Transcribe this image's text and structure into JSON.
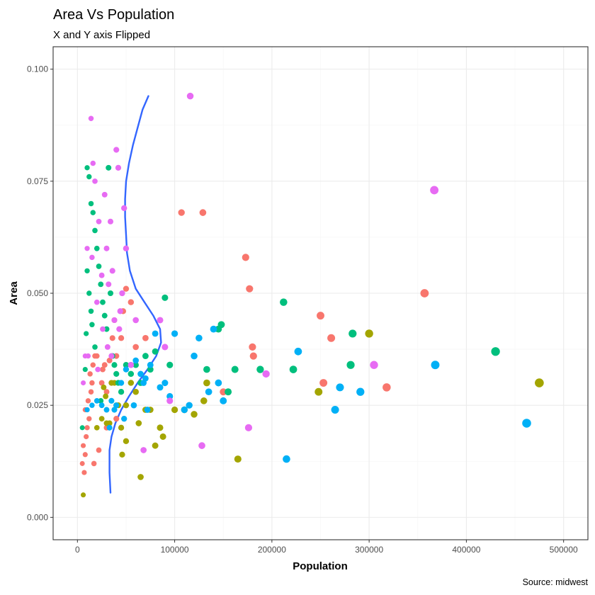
{
  "chart_data": {
    "type": "scatter",
    "title": "Area Vs Population",
    "subtitle": "X and Y axis Flipped",
    "xlabel": "Population",
    "ylabel": "Area",
    "caption": "Source: midwest",
    "xlim": [
      -25000,
      525000
    ],
    "ylim": [
      -0.005,
      0.105
    ],
    "x_ticks": [
      0,
      100000,
      200000,
      300000,
      400000,
      500000
    ],
    "x_tick_labels": [
      "0",
      "100000",
      "200000",
      "300000",
      "400000",
      "500000"
    ],
    "y_ticks": [
      0.0,
      0.025,
      0.05,
      0.075,
      0.1
    ],
    "y_tick_labels": [
      "0.000",
      "0.025",
      "0.050",
      "0.075",
      "0.100"
    ],
    "grid": true,
    "legend": "none",
    "colors": {
      "red": "#F8766D",
      "olive": "#A3A500",
      "green": "#00BF7D",
      "blue": "#00B0F6",
      "pink": "#E76BF3",
      "smooth": "#3366FF",
      "panel_border": "#333333",
      "grid_major": "#EBEBEB",
      "grid_minor": "#F5F5F5"
    },
    "series": [
      {
        "color_key": "red",
        "points": [
          [
            5000,
            0.012
          ],
          [
            7000,
            0.01
          ],
          [
            8000,
            0.014
          ],
          [
            6000,
            0.016
          ],
          [
            9000,
            0.018
          ],
          [
            10000,
            0.02
          ],
          [
            12000,
            0.022
          ],
          [
            8000,
            0.024
          ],
          [
            11000,
            0.026
          ],
          [
            14000,
            0.028
          ],
          [
            13000,
            0.032
          ],
          [
            16000,
            0.034
          ],
          [
            18000,
            0.036
          ],
          [
            15000,
            0.03
          ],
          [
            20000,
            0.036
          ],
          [
            25000,
            0.03
          ],
          [
            30000,
            0.028
          ],
          [
            28000,
            0.034
          ],
          [
            35000,
            0.03
          ],
          [
            40000,
            0.036
          ],
          [
            45000,
            0.04
          ],
          [
            50000,
            0.051
          ],
          [
            60000,
            0.038
          ],
          [
            70000,
            0.04
          ],
          [
            107000,
            0.068
          ],
          [
            129000,
            0.068
          ],
          [
            173000,
            0.058
          ],
          [
            177000,
            0.051
          ],
          [
            180000,
            0.038
          ],
          [
            181000,
            0.036
          ],
          [
            150000,
            0.028
          ],
          [
            250000,
            0.045
          ],
          [
            253000,
            0.03
          ],
          [
            261000,
            0.04
          ],
          [
            318000,
            0.029
          ],
          [
            357000,
            0.05
          ],
          [
            22000,
            0.015
          ],
          [
            17000,
            0.012
          ],
          [
            30000,
            0.02
          ],
          [
            40000,
            0.022
          ],
          [
            55000,
            0.048
          ],
          [
            47000,
            0.046
          ],
          [
            26000,
            0.033
          ],
          [
            33000,
            0.035
          ],
          [
            36000,
            0.04
          ],
          [
            38000,
            0.044
          ]
        ]
      },
      {
        "color_key": "olive",
        "points": [
          [
            6000,
            0.005
          ],
          [
            20000,
            0.02
          ],
          [
            25000,
            0.022
          ],
          [
            30000,
            0.021
          ],
          [
            35000,
            0.03
          ],
          [
            40000,
            0.025
          ],
          [
            45000,
            0.02
          ],
          [
            50000,
            0.025
          ],
          [
            55000,
            0.03
          ],
          [
            60000,
            0.028
          ],
          [
            63000,
            0.021
          ],
          [
            65000,
            0.009
          ],
          [
            70000,
            0.024
          ],
          [
            75000,
            0.024
          ],
          [
            80000,
            0.016
          ],
          [
            85000,
            0.02
          ],
          [
            88000,
            0.018
          ],
          [
            100000,
            0.024
          ],
          [
            110000,
            0.024
          ],
          [
            120000,
            0.023
          ],
          [
            130000,
            0.026
          ],
          [
            133000,
            0.03
          ],
          [
            165000,
            0.013
          ],
          [
            248000,
            0.028
          ],
          [
            300000,
            0.041
          ],
          [
            475000,
            0.03
          ],
          [
            46000,
            0.014
          ],
          [
            50000,
            0.017
          ],
          [
            38000,
            0.03
          ],
          [
            42000,
            0.025
          ],
          [
            33000,
            0.021
          ],
          [
            27000,
            0.029
          ],
          [
            29000,
            0.027
          ]
        ]
      },
      {
        "color_key": "green",
        "points": [
          [
            5000,
            0.02
          ],
          [
            8000,
            0.033
          ],
          [
            9000,
            0.041
          ],
          [
            10000,
            0.055
          ],
          [
            12000,
            0.05
          ],
          [
            15000,
            0.043
          ],
          [
            10000,
            0.078
          ],
          [
            12000,
            0.076
          ],
          [
            14000,
            0.07
          ],
          [
            16000,
            0.068
          ],
          [
            18000,
            0.064
          ],
          [
            20000,
            0.06
          ],
          [
            22000,
            0.056
          ],
          [
            24000,
            0.052
          ],
          [
            26000,
            0.048
          ],
          [
            28000,
            0.045
          ],
          [
            30000,
            0.042
          ],
          [
            32000,
            0.078
          ],
          [
            34000,
            0.05
          ],
          [
            36000,
            0.036
          ],
          [
            38000,
            0.034
          ],
          [
            40000,
            0.032
          ],
          [
            42000,
            0.03
          ],
          [
            50000,
            0.034
          ],
          [
            60000,
            0.034
          ],
          [
            70000,
            0.036
          ],
          [
            80000,
            0.037
          ],
          [
            90000,
            0.049
          ],
          [
            95000,
            0.034
          ],
          [
            133000,
            0.033
          ],
          [
            145000,
            0.042
          ],
          [
            148000,
            0.043
          ],
          [
            162000,
            0.033
          ],
          [
            188000,
            0.033
          ],
          [
            212000,
            0.048
          ],
          [
            222000,
            0.033
          ],
          [
            281000,
            0.034
          ],
          [
            283000,
            0.041
          ],
          [
            430000,
            0.037
          ],
          [
            14000,
            0.046
          ],
          [
            18000,
            0.038
          ],
          [
            24000,
            0.026
          ],
          [
            45000,
            0.028
          ],
          [
            55000,
            0.032
          ],
          [
            65000,
            0.03
          ],
          [
            75000,
            0.033
          ],
          [
            155000,
            0.028
          ]
        ]
      },
      {
        "color_key": "blue",
        "points": [
          [
            10000,
            0.024
          ],
          [
            15000,
            0.025
          ],
          [
            20000,
            0.026
          ],
          [
            25000,
            0.025
          ],
          [
            30000,
            0.024
          ],
          [
            35000,
            0.026
          ],
          [
            40000,
            0.025
          ],
          [
            45000,
            0.03
          ],
          [
            50000,
            0.033
          ],
          [
            55000,
            0.034
          ],
          [
            60000,
            0.035
          ],
          [
            65000,
            0.032
          ],
          [
            70000,
            0.031
          ],
          [
            75000,
            0.034
          ],
          [
            80000,
            0.041
          ],
          [
            85000,
            0.029
          ],
          [
            90000,
            0.03
          ],
          [
            95000,
            0.027
          ],
          [
            100000,
            0.041
          ],
          [
            110000,
            0.024
          ],
          [
            115000,
            0.025
          ],
          [
            120000,
            0.036
          ],
          [
            125000,
            0.04
          ],
          [
            135000,
            0.028
          ],
          [
            140000,
            0.042
          ],
          [
            145000,
            0.03
          ],
          [
            150000,
            0.026
          ],
          [
            215000,
            0.013
          ],
          [
            227000,
            0.037
          ],
          [
            265000,
            0.024
          ],
          [
            270000,
            0.029
          ],
          [
            291000,
            0.028
          ],
          [
            368000,
            0.034
          ],
          [
            462000,
            0.021
          ],
          [
            33000,
            0.02
          ],
          [
            38000,
            0.024
          ],
          [
            48000,
            0.022
          ],
          [
            58000,
            0.025
          ],
          [
            68000,
            0.03
          ],
          [
            72000,
            0.024
          ]
        ]
      },
      {
        "color_key": "pink",
        "points": [
          [
            6000,
            0.03
          ],
          [
            8000,
            0.036
          ],
          [
            10000,
            0.06
          ],
          [
            14000,
            0.089
          ],
          [
            15000,
            0.058
          ],
          [
            16000,
            0.079
          ],
          [
            18000,
            0.075
          ],
          [
            20000,
            0.048
          ],
          [
            22000,
            0.066
          ],
          [
            25000,
            0.054
          ],
          [
            28000,
            0.072
          ],
          [
            30000,
            0.06
          ],
          [
            32000,
            0.052
          ],
          [
            34000,
            0.066
          ],
          [
            36000,
            0.055
          ],
          [
            38000,
            0.044
          ],
          [
            40000,
            0.082
          ],
          [
            42000,
            0.078
          ],
          [
            44000,
            0.046
          ],
          [
            46000,
            0.05
          ],
          [
            48000,
            0.069
          ],
          [
            50000,
            0.06
          ],
          [
            55000,
            0.034
          ],
          [
            60000,
            0.044
          ],
          [
            68000,
            0.015
          ],
          [
            85000,
            0.044
          ],
          [
            90000,
            0.038
          ],
          [
            95000,
            0.026
          ],
          [
            116000,
            0.094
          ],
          [
            128000,
            0.016
          ],
          [
            176000,
            0.02
          ],
          [
            194000,
            0.032
          ],
          [
            305000,
            0.034
          ],
          [
            367000,
            0.073
          ],
          [
            11000,
            0.036
          ],
          [
            21000,
            0.033
          ],
          [
            26000,
            0.042
          ],
          [
            31000,
            0.038
          ],
          [
            35000,
            0.036
          ],
          [
            43000,
            0.042
          ]
        ]
      }
    ],
    "smooth_line": [
      [
        34000,
        0.0055
      ],
      [
        33000,
        0.01
      ],
      [
        33000,
        0.015
      ],
      [
        35000,
        0.018
      ],
      [
        39000,
        0.021
      ],
      [
        45000,
        0.024
      ],
      [
        53000,
        0.027
      ],
      [
        62000,
        0.03
      ],
      [
        72000,
        0.033
      ],
      [
        81000,
        0.036
      ],
      [
        86000,
        0.039
      ],
      [
        85000,
        0.042
      ],
      [
        78000,
        0.045
      ],
      [
        69000,
        0.048
      ],
      [
        60000,
        0.051
      ],
      [
        54000,
        0.055
      ],
      [
        51000,
        0.059
      ],
      [
        50000,
        0.063
      ],
      [
        49000,
        0.067
      ],
      [
        49000,
        0.071
      ],
      [
        50000,
        0.075
      ],
      [
        53000,
        0.079
      ],
      [
        57000,
        0.083
      ],
      [
        62000,
        0.087
      ],
      [
        67000,
        0.091
      ],
      [
        73000,
        0.094
      ]
    ]
  }
}
